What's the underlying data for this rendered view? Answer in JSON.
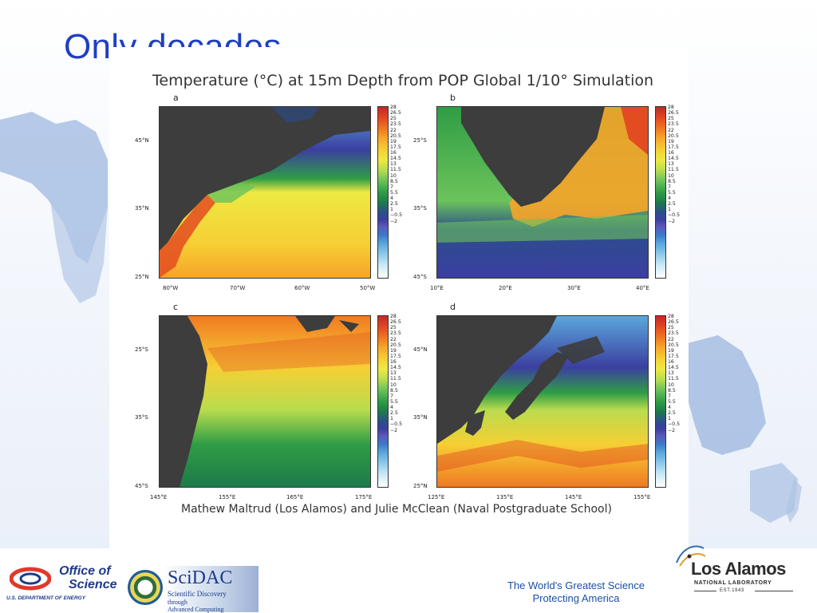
{
  "slide": {
    "title": "Only decades…"
  },
  "figure": {
    "title": "Temperature (°C) at 15m Depth from POP Global 1/10° Simulation",
    "credit": "Mathew Maltrud (Los Alamos) and Julie McClean (Naval Postgraduate School)",
    "colorbar_labels": [
      "28",
      "26.5",
      "25",
      "23.5",
      "22",
      "20.5",
      "19",
      "17.5",
      "16",
      "14.5",
      "13",
      "11.5",
      "10",
      "8.5",
      "7",
      "5.5",
      "4",
      "2.5",
      "1",
      "−0.5",
      "−2"
    ],
    "panels": [
      {
        "label": "a",
        "y_ticks": [
          "45°N",
          "35°N",
          "25°N"
        ],
        "x_ticks": [
          "80°W",
          "70°W",
          "60°W",
          "50°W"
        ]
      },
      {
        "label": "b",
        "y_ticks": [
          "25°S",
          "35°S",
          "45°S"
        ],
        "x_ticks": [
          "10°E",
          "20°E",
          "30°E",
          "40°E"
        ]
      },
      {
        "label": "c",
        "y_ticks": [
          "25°S",
          "35°S",
          "45°S"
        ],
        "x_ticks": [
          "145°E",
          "155°E",
          "165°E",
          "175°E"
        ]
      },
      {
        "label": "d",
        "y_ticks": [
          "45°N",
          "35°N",
          "25°N"
        ],
        "x_ticks": [
          "125°E",
          "135°E",
          "145°E",
          "155°E"
        ]
      }
    ]
  },
  "footer": {
    "office_line1": "Office of",
    "office_line2": "Science",
    "office_line3": "U.S. DEPARTMENT OF ENERGY",
    "scidac_name": "SciDAC",
    "scidac_line1": "Scientific Discovery",
    "scidac_line2": "through",
    "scidac_line3": "Advanced Computing",
    "tagline_line1": "The World's Greatest Science",
    "tagline_line2": "Protecting America",
    "lanl_name": "Los Alamos",
    "lanl_sub": "NATIONAL LABORATORY",
    "lanl_est": "EST.1943"
  },
  "colors": {
    "title": "#1f3fc4",
    "land": "#3d3d3d",
    "tagline": "#1a4fa6"
  }
}
